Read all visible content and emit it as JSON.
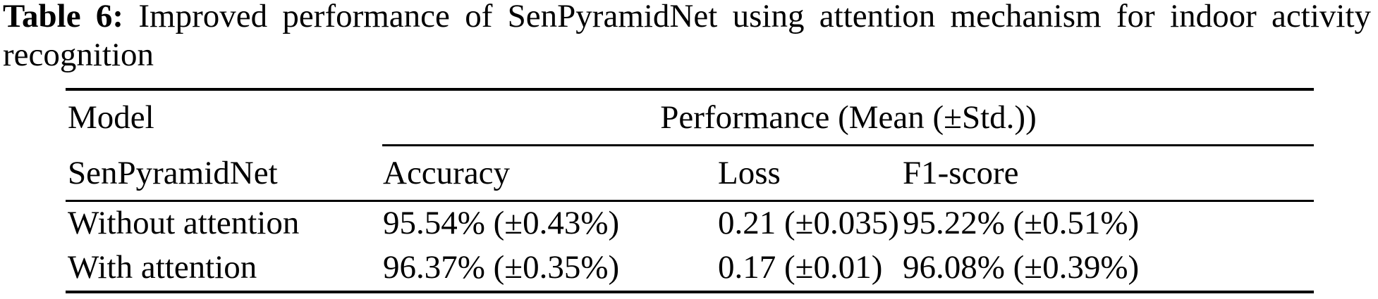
{
  "page": {
    "background": "#ffffff",
    "text_color": "#000000",
    "rule_color": "#000000"
  },
  "caption": {
    "label": "Table 6:",
    "line1": "Improved performance of SenPyramidNet using attention mechanism for indoor activity",
    "line2": "recognition"
  },
  "table": {
    "top_left_header": "Model",
    "span_header": "Performance (Mean (±Std.))",
    "row_group_header": "SenPyramidNet",
    "column_headers": [
      "Accuracy",
      "Loss",
      "F1-score"
    ],
    "rows": [
      {
        "model": "Without attention",
        "accuracy": "95.54% (±0.43%)",
        "loss": "0.21 (±0.035)",
        "f1_score": "95.22% (±0.51%)"
      },
      {
        "model": "With attention",
        "accuracy": "96.37% (±0.35%)",
        "loss": "0.17 (±0.01)",
        "f1_score": "96.08% (±0.39%)"
      }
    ]
  }
}
